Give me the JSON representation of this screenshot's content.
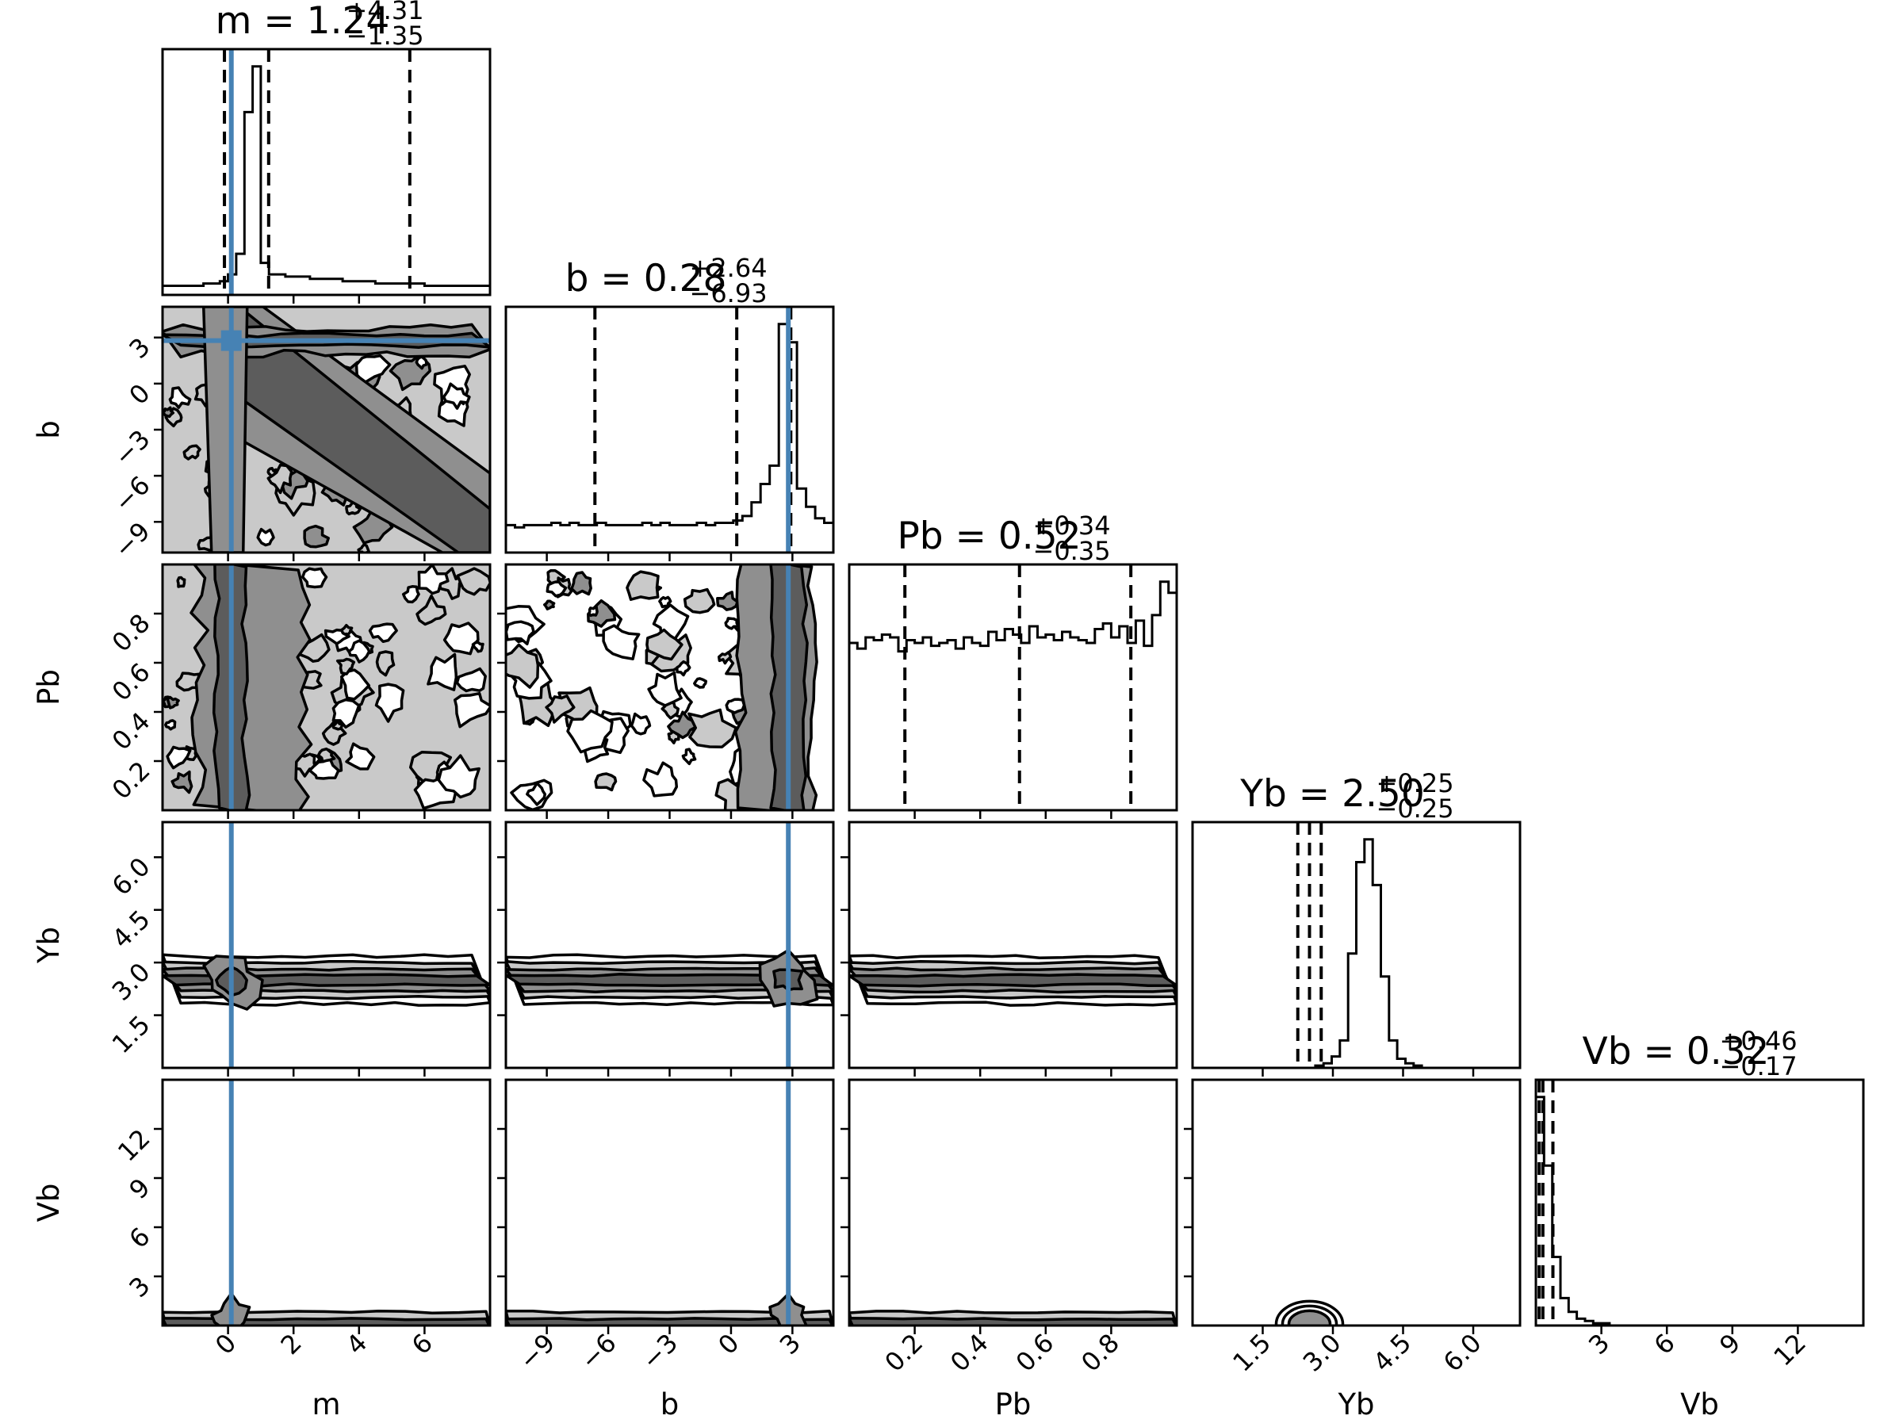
{
  "chart_data": {
    "type": "corner",
    "parameters": [
      "m",
      "b",
      "Pb",
      "Yb",
      "Vb"
    ],
    "axis_labels": [
      "m",
      "b",
      "Pb",
      "Yb",
      "Vb"
    ],
    "ranges": [
      [
        -2,
        8
      ],
      [
        -11,
        5
      ],
      [
        0,
        1
      ],
      [
        0,
        7
      ],
      [
        0,
        15
      ]
    ],
    "ticks": [
      [
        "0",
        "2",
        "4",
        "6"
      ],
      [
        "−9",
        "−6",
        "−3",
        "0",
        "3"
      ],
      [
        "0.2",
        "0.4",
        "0.6",
        "0.8"
      ],
      [
        "1.5",
        "3.0",
        "4.5",
        "6.0"
      ],
      [
        "3",
        "6",
        "9",
        "12"
      ]
    ],
    "titles": [
      {
        "label": "m = 1.24",
        "plus": "+4.31",
        "minus": "−1.35"
      },
      {
        "label": "b = 0.28",
        "plus": "+2.64",
        "minus": "−6.93"
      },
      {
        "label": "Pb = 0.52",
        "plus": "+0.34",
        "minus": "−0.35"
      },
      {
        "label": "Yb = 2.50",
        "plus": "+0.25",
        "minus": "−0.25"
      },
      {
        "label": "Vb = 0.32",
        "plus": "+0.46",
        "minus": "−0.17"
      }
    ],
    "quantiles": [
      [
        -0.11,
        1.24,
        5.55
      ],
      [
        -6.65,
        0.28,
        2.92
      ],
      [
        0.17,
        0.52,
        0.86
      ],
      [
        2.25,
        2.5,
        2.75
      ],
      [
        0.15,
        0.32,
        0.78
      ]
    ],
    "truths": [
      0.1,
      2.8,
      null,
      null,
      null
    ],
    "truth_color": "#4682b4",
    "histograms": {
      "m": [
        4,
        4,
        4,
        4,
        4,
        5,
        5,
        6,
        9,
        18,
        80,
        100,
        14,
        9,
        9,
        8,
        8,
        8,
        7,
        7,
        7,
        7,
        6,
        6,
        6,
        6,
        5,
        5,
        5,
        5,
        5,
        5,
        4,
        4,
        4,
        4,
        4,
        4,
        4,
        4
      ],
      "b": [
        12,
        11,
        12,
        12,
        12,
        13,
        12,
        13,
        12,
        12,
        13,
        12,
        12,
        12,
        12,
        13,
        12,
        13,
        12,
        12,
        12,
        13,
        12,
        13,
        13,
        14,
        16,
        22,
        30,
        38,
        100,
        92,
        28,
        20,
        15,
        13
      ],
      "Pb": [
        60,
        58,
        62,
        61,
        63,
        62,
        57,
        61,
        60,
        62,
        59,
        60,
        61,
        58,
        62,
        60,
        59,
        64,
        61,
        65,
        63,
        60,
        66,
        62,
        63,
        61,
        64,
        62,
        61,
        60,
        65,
        67,
        62,
        66,
        60,
        68,
        59,
        70,
        82,
        78
      ],
      "Yb": [
        0,
        0,
        0,
        0,
        0,
        0,
        0,
        0,
        0,
        0,
        0,
        0,
        0,
        0,
        0,
        1,
        2,
        5,
        12,
        50,
        90,
        100,
        80,
        40,
        12,
        4,
        2,
        1,
        0,
        0,
        0,
        0,
        0,
        0,
        0,
        0,
        0,
        0,
        0,
        0
      ],
      "Vb": [
        100,
        70,
        30,
        12,
        6,
        3,
        2,
        1,
        1,
        0,
        0,
        0,
        0,
        0,
        0,
        0,
        0,
        0,
        0,
        0,
        0,
        0,
        0,
        0,
        0,
        0,
        0,
        0,
        0,
        0,
        0,
        0,
        0,
        0,
        0,
        0,
        0,
        0,
        0,
        0
      ]
    }
  }
}
